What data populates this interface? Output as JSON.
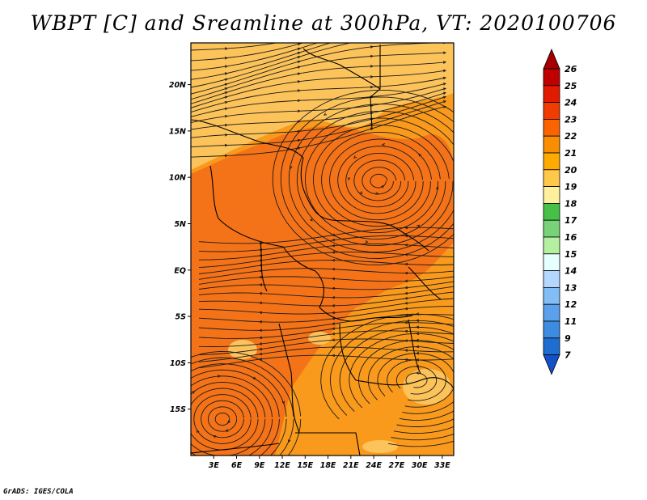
{
  "title": "WBPT [C] and Sreamline at 300hPa, VT: 2020100706",
  "credit": "GrADS: IGES/COLA",
  "map": {
    "lat_labels": [
      "20N",
      "15N",
      "10N",
      "5N",
      "EQ",
      "5S",
      "10S",
      "15S"
    ],
    "lat_values": [
      20,
      15,
      10,
      5,
      0,
      -5,
      -10,
      -15
    ],
    "lon_labels": [
      "3E",
      "6E",
      "9E",
      "12E",
      "15E",
      "18E",
      "21E",
      "24E",
      "27E",
      "30E",
      "33E"
    ],
    "lon_values": [
      3,
      6,
      9,
      12,
      15,
      18,
      21,
      24,
      27,
      30,
      33
    ],
    "lon_range": [
      0,
      34.5
    ],
    "lat_range": [
      -20,
      24.5
    ]
  },
  "colorbar": {
    "labels": [
      "26",
      "25",
      "24",
      "23",
      "22",
      "21",
      "20",
      "19",
      "18",
      "17",
      "16",
      "15",
      "14",
      "13",
      "12",
      "11",
      "9",
      "7"
    ],
    "colors": [
      "#a50000",
      "#c00000",
      "#e11a00",
      "#f03c00",
      "#fa6400",
      "#f88e00",
      "#ffaa00",
      "#ffc84b",
      "#fff09b",
      "#46c046",
      "#78d278",
      "#b4f0a0",
      "#e6ffff",
      "#b4d7ff",
      "#82bef5",
      "#5aa0eb",
      "#3c8ce1",
      "#1e6ed2",
      "#1450c8"
    ]
  },
  "colors": {
    "dark_orange": "#f47318",
    "mid_orange": "#f99a1c",
    "light_orange": "#fcc35a",
    "streamline": "#1a1a1a"
  }
}
